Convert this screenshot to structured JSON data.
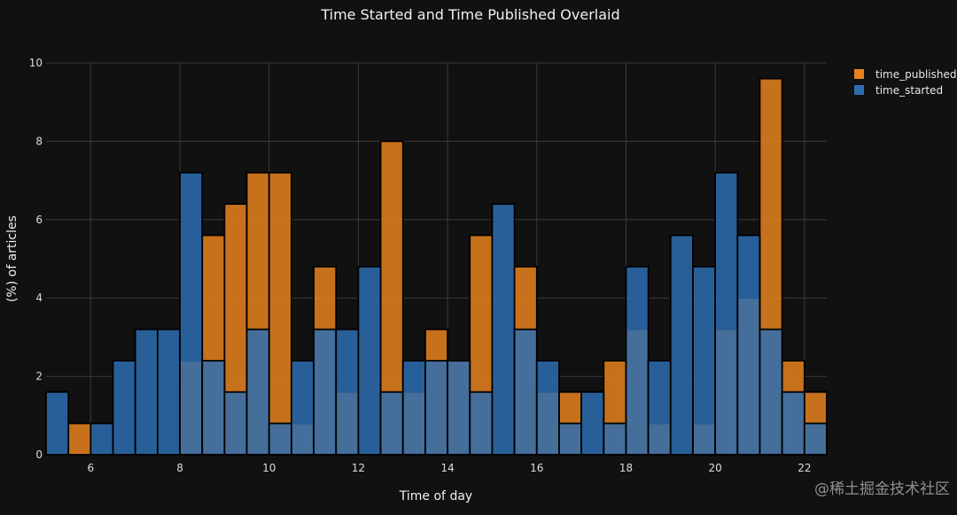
{
  "chart_data": {
    "type": "bar",
    "barmode": "overlay",
    "title": "Time Started and Time Published Overlaid",
    "xlabel": "Time of day",
    "ylabel": "(%) of articles",
    "xlim": [
      5,
      22.5
    ],
    "ylim": [
      0,
      10
    ],
    "xticks": [
      6,
      8,
      10,
      12,
      14,
      16,
      18,
      20,
      22
    ],
    "yticks": [
      0,
      2,
      4,
      6,
      8,
      10
    ],
    "grid": true,
    "legend_position": "top-right",
    "bin_width": 0.5,
    "bin_starts": [
      5,
      5.5,
      6,
      6.5,
      7,
      7.5,
      8,
      8.5,
      9,
      9.5,
      10,
      10.5,
      11,
      11.5,
      12,
      12.5,
      13,
      13.5,
      14,
      14.5,
      15,
      15.5,
      16,
      16.5,
      17,
      17.5,
      18,
      18.5,
      19,
      19.5,
      20,
      20.5,
      21,
      21.5,
      22
    ],
    "series": [
      {
        "name": "time_published",
        "color": "#e8821e",
        "values": [
          0,
          0.8,
          0,
          0,
          0,
          0,
          2.4,
          5.6,
          6.4,
          7.2,
          7.2,
          0.8,
          4.8,
          1.6,
          0,
          8.0,
          1.6,
          3.2,
          2.4,
          5.6,
          0,
          4.8,
          1.6,
          1.6,
          0,
          2.4,
          3.2,
          0.8,
          0,
          0.8,
          3.2,
          4.0,
          9.6,
          2.4,
          1.6
        ]
      },
      {
        "name": "time_started",
        "color": "#2e6db0",
        "values": [
          1.6,
          0,
          0.8,
          2.4,
          3.2,
          3.2,
          7.2,
          2.4,
          1.6,
          3.2,
          0.8,
          2.4,
          3.2,
          3.2,
          4.8,
          1.6,
          2.4,
          2.4,
          2.4,
          1.6,
          6.4,
          3.2,
          2.4,
          0.8,
          1.6,
          0.8,
          4.8,
          2.4,
          5.6,
          4.8,
          7.2,
          5.6,
          3.2,
          1.6,
          0.8
        ]
      }
    ]
  },
  "watermark": "@稀土掘金技术社区"
}
